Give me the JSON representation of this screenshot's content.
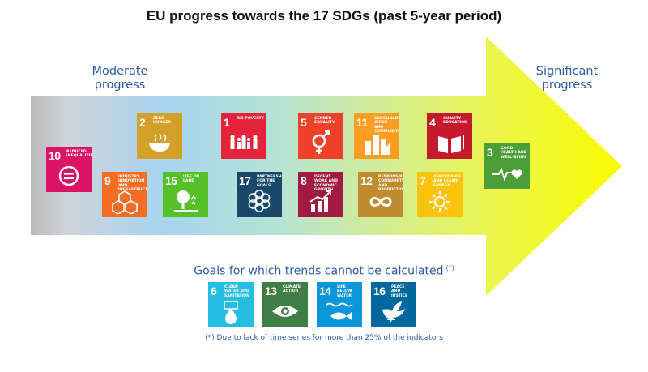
{
  "title": "EU progress towards the 17 SDGs (past 5-year period)",
  "left_label": [
    "Moderate",
    "progress"
  ],
  "right_label": [
    "Significant",
    "progress"
  ],
  "no_trend_heading": "Goals for which trends cannot be calculated",
  "no_trend_marker": "(*)",
  "footnote": "(*) Due to lack of time series for more than 25% of the indicators",
  "goals": {
    "g10": {
      "number": "10",
      "label": "Reduced inequalities",
      "color": "#dd1367",
      "icon": "equality-icon"
    },
    "g2": {
      "number": "2",
      "label": "Zero hunger",
      "color": "#d3a029",
      "icon": "bowl-icon"
    },
    "g9": {
      "number": "9",
      "label": "Industry, innovation and infrastructure",
      "color": "#f36d25",
      "icon": "cubes-icon"
    },
    "g15": {
      "number": "15",
      "label": "Life on land",
      "color": "#56c02b",
      "icon": "tree-icon"
    },
    "g1": {
      "number": "1",
      "label": "No poverty",
      "color": "#e5243b",
      "icon": "family-icon"
    },
    "g17": {
      "number": "17",
      "label": "Partnerships for the goals",
      "color": "#19486a",
      "icon": "flower-icon"
    },
    "g5": {
      "number": "5",
      "label": "Gender equality",
      "color": "#ef402b",
      "icon": "gender-icon"
    },
    "g8": {
      "number": "8",
      "label": "Decent work and economic growth",
      "color": "#a21942",
      "icon": "growth-chart-icon"
    },
    "g11": {
      "number": "11",
      "label": "Sustainable cities and communities",
      "color": "#fd9d24",
      "icon": "buildings-icon"
    },
    "g12": {
      "number": "12",
      "label": "Responsible consumption and production",
      "color": "#bf8b2e",
      "icon": "infinity-icon"
    },
    "g4": {
      "number": "4",
      "label": "Quality education",
      "color": "#c5192d",
      "icon": "book-icon"
    },
    "g7": {
      "number": "7",
      "label": "Affordable and clean energy",
      "color": "#fcc30b",
      "icon": "sun-icon"
    },
    "g3": {
      "number": "3",
      "label": "Good health and well-being",
      "color": "#4c9f38",
      "icon": "heartbeat-icon"
    },
    "g6": {
      "number": "6",
      "label": "Clean water and sanitation",
      "color": "#26bde2",
      "icon": "water-drop-icon"
    },
    "g13": {
      "number": "13",
      "label": "Climate action",
      "color": "#3f7e44",
      "icon": "eye-icon"
    },
    "g14": {
      "number": "14",
      "label": "Life below water",
      "color": "#0a97d9",
      "icon": "fish-icon"
    },
    "g16": {
      "number": "16",
      "label": "Peace and justice",
      "color": "#00689d",
      "icon": "dove-icon"
    }
  }
}
